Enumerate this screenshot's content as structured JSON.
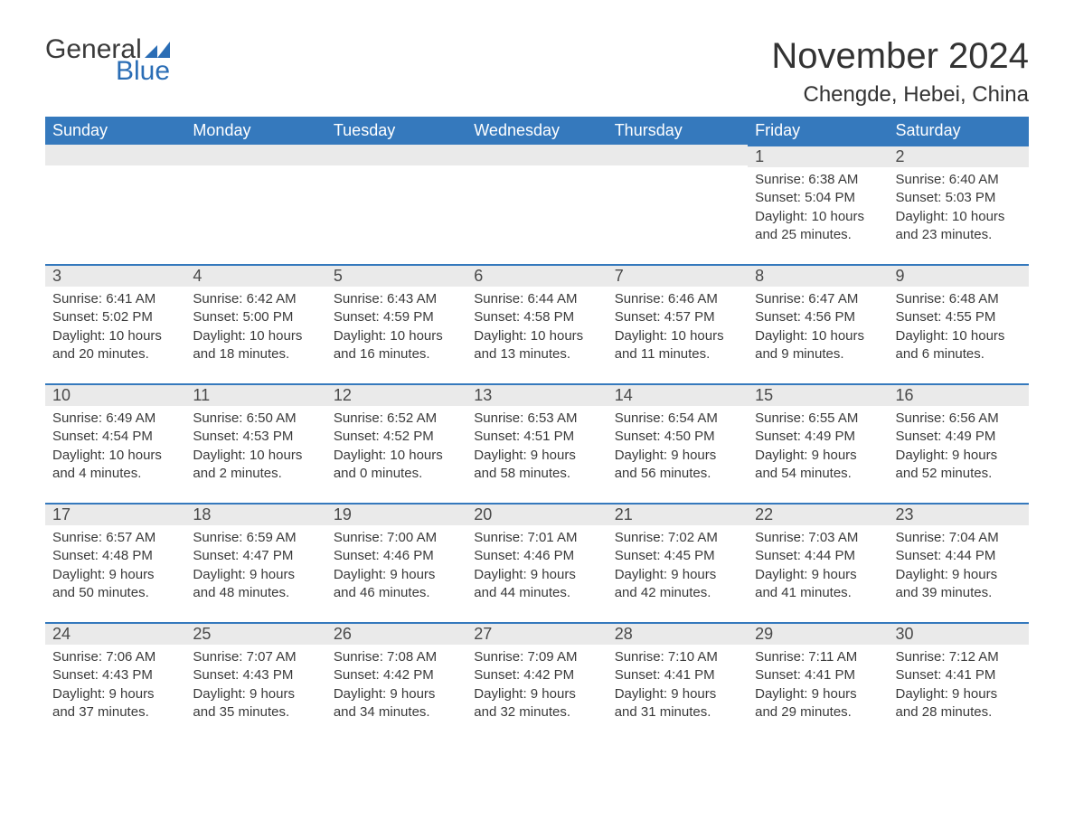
{
  "brand": {
    "word1": "General",
    "word2": "Blue"
  },
  "title": "November 2024",
  "location": "Chengde, Hebei, China",
  "colors": {
    "header_bg": "#3579bd",
    "header_text": "#ffffff",
    "daynum_bg": "#eaeaea",
    "divider": "#3579bd",
    "body_text": "#3a3a3a",
    "brand_gray": "#3a3a3a",
    "brand_blue": "#2a6db5",
    "background": "#ffffff"
  },
  "typography": {
    "title_fontsize": 40,
    "location_fontsize": 24,
    "header_fontsize": 18,
    "daynum_fontsize": 18,
    "body_fontsize": 15,
    "logo_fontsize": 30
  },
  "days_of_week": [
    "Sunday",
    "Monday",
    "Tuesday",
    "Wednesday",
    "Thursday",
    "Friday",
    "Saturday"
  ],
  "labels": {
    "sunrise": "Sunrise:",
    "sunset": "Sunset:",
    "daylight": "Daylight:"
  },
  "first_weekday_index": 5,
  "days": [
    {
      "n": 1,
      "sunrise": "6:38 AM",
      "sunset": "5:04 PM",
      "daylight": "10 hours and 25 minutes."
    },
    {
      "n": 2,
      "sunrise": "6:40 AM",
      "sunset": "5:03 PM",
      "daylight": "10 hours and 23 minutes."
    },
    {
      "n": 3,
      "sunrise": "6:41 AM",
      "sunset": "5:02 PM",
      "daylight": "10 hours and 20 minutes."
    },
    {
      "n": 4,
      "sunrise": "6:42 AM",
      "sunset": "5:00 PM",
      "daylight": "10 hours and 18 minutes."
    },
    {
      "n": 5,
      "sunrise": "6:43 AM",
      "sunset": "4:59 PM",
      "daylight": "10 hours and 16 minutes."
    },
    {
      "n": 6,
      "sunrise": "6:44 AM",
      "sunset": "4:58 PM",
      "daylight": "10 hours and 13 minutes."
    },
    {
      "n": 7,
      "sunrise": "6:46 AM",
      "sunset": "4:57 PM",
      "daylight": "10 hours and 11 minutes."
    },
    {
      "n": 8,
      "sunrise": "6:47 AM",
      "sunset": "4:56 PM",
      "daylight": "10 hours and 9 minutes."
    },
    {
      "n": 9,
      "sunrise": "6:48 AM",
      "sunset": "4:55 PM",
      "daylight": "10 hours and 6 minutes."
    },
    {
      "n": 10,
      "sunrise": "6:49 AM",
      "sunset": "4:54 PM",
      "daylight": "10 hours and 4 minutes."
    },
    {
      "n": 11,
      "sunrise": "6:50 AM",
      "sunset": "4:53 PM",
      "daylight": "10 hours and 2 minutes."
    },
    {
      "n": 12,
      "sunrise": "6:52 AM",
      "sunset": "4:52 PM",
      "daylight": "10 hours and 0 minutes."
    },
    {
      "n": 13,
      "sunrise": "6:53 AM",
      "sunset": "4:51 PM",
      "daylight": "9 hours and 58 minutes."
    },
    {
      "n": 14,
      "sunrise": "6:54 AM",
      "sunset": "4:50 PM",
      "daylight": "9 hours and 56 minutes."
    },
    {
      "n": 15,
      "sunrise": "6:55 AM",
      "sunset": "4:49 PM",
      "daylight": "9 hours and 54 minutes."
    },
    {
      "n": 16,
      "sunrise": "6:56 AM",
      "sunset": "4:49 PM",
      "daylight": "9 hours and 52 minutes."
    },
    {
      "n": 17,
      "sunrise": "6:57 AM",
      "sunset": "4:48 PM",
      "daylight": "9 hours and 50 minutes."
    },
    {
      "n": 18,
      "sunrise": "6:59 AM",
      "sunset": "4:47 PM",
      "daylight": "9 hours and 48 minutes."
    },
    {
      "n": 19,
      "sunrise": "7:00 AM",
      "sunset": "4:46 PM",
      "daylight": "9 hours and 46 minutes."
    },
    {
      "n": 20,
      "sunrise": "7:01 AM",
      "sunset": "4:46 PM",
      "daylight": "9 hours and 44 minutes."
    },
    {
      "n": 21,
      "sunrise": "7:02 AM",
      "sunset": "4:45 PM",
      "daylight": "9 hours and 42 minutes."
    },
    {
      "n": 22,
      "sunrise": "7:03 AM",
      "sunset": "4:44 PM",
      "daylight": "9 hours and 41 minutes."
    },
    {
      "n": 23,
      "sunrise": "7:04 AM",
      "sunset": "4:44 PM",
      "daylight": "9 hours and 39 minutes."
    },
    {
      "n": 24,
      "sunrise": "7:06 AM",
      "sunset": "4:43 PM",
      "daylight": "9 hours and 37 minutes."
    },
    {
      "n": 25,
      "sunrise": "7:07 AM",
      "sunset": "4:43 PM",
      "daylight": "9 hours and 35 minutes."
    },
    {
      "n": 26,
      "sunrise": "7:08 AM",
      "sunset": "4:42 PM",
      "daylight": "9 hours and 34 minutes."
    },
    {
      "n": 27,
      "sunrise": "7:09 AM",
      "sunset": "4:42 PM",
      "daylight": "9 hours and 32 minutes."
    },
    {
      "n": 28,
      "sunrise": "7:10 AM",
      "sunset": "4:41 PM",
      "daylight": "9 hours and 31 minutes."
    },
    {
      "n": 29,
      "sunrise": "7:11 AM",
      "sunset": "4:41 PM",
      "daylight": "9 hours and 29 minutes."
    },
    {
      "n": 30,
      "sunrise": "7:12 AM",
      "sunset": "4:41 PM",
      "daylight": "9 hours and 28 minutes."
    }
  ]
}
